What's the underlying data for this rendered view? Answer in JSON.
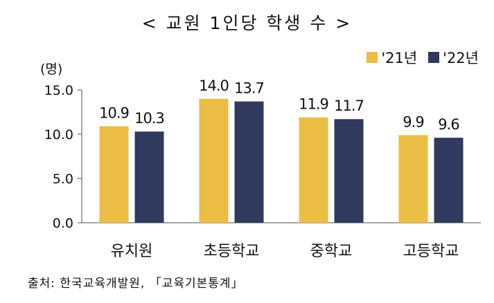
{
  "chart_data": {
    "type": "bar",
    "title": "< 교원 1인당 학생 수 >",
    "ylabel": "(명)",
    "categories": [
      "유치원",
      "초등학교",
      "중학교",
      "고등학교"
    ],
    "series": [
      {
        "name": "'21년",
        "values": [
          10.9,
          14.0,
          11.9,
          9.9
        ],
        "value_labels": [
          "10.9",
          "14.0",
          "11.9",
          "9.9"
        ]
      },
      {
        "name": "'22년",
        "values": [
          10.3,
          13.7,
          11.7,
          9.6
        ],
        "value_labels": [
          "10.3",
          "13.7",
          "11.7",
          "9.6"
        ]
      }
    ],
    "ylim": [
      0,
      15
    ],
    "yticks": [
      0,
      5,
      10,
      15
    ],
    "ytick_labels": [
      "0.0",
      "5.0",
      "10.0",
      "15.0"
    ],
    "grid": false,
    "legend_position": "top-right",
    "colors": [
      "#ECBD45",
      "#2F3A5E"
    ]
  },
  "source": "출처: 한국교육개발원, 「교육기본통계」"
}
